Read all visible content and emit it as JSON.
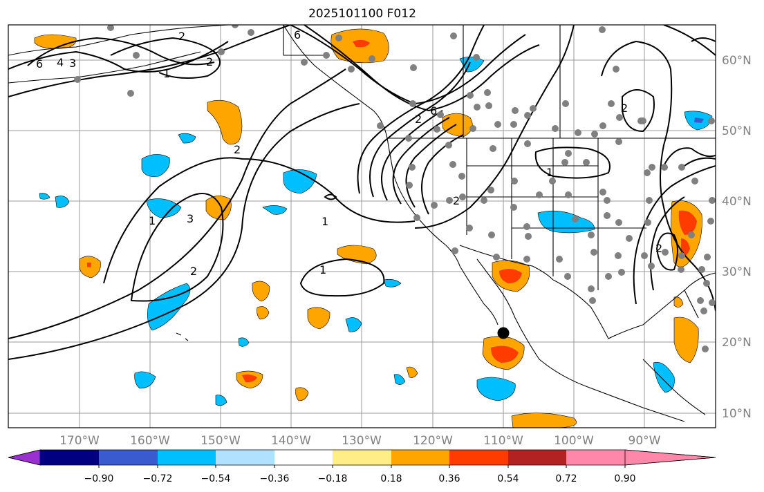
{
  "title": "2025101100 F012",
  "longitude_labels": [
    "170°W",
    "160°W",
    "150°W",
    "140°W",
    "130°W",
    "120°W",
    "110°W",
    "100°W",
    "90°W"
  ],
  "latitude_labels": [
    "60°N",
    "50°N",
    "40°N",
    "30°N",
    "20°N",
    "10°N"
  ],
  "colorbar": {
    "tick_labels": [
      "−0.90",
      "−0.72",
      "−0.54",
      "−0.36",
      "−0.18",
      "0.18",
      "0.36",
      "0.54",
      "0.72",
      "0.90"
    ],
    "colors": [
      "#9b30d0",
      "#000080",
      "#3a5bd0",
      "#00bfff",
      "#b0e2ff",
      "#ffffff",
      "#ffee88",
      "#ffa500",
      "#ff3c00",
      "#b22222",
      "#ff88aa"
    ]
  },
  "contour_labels": [
    "6",
    "6",
    "4",
    "3",
    "2",
    "2",
    "2",
    "2",
    "2",
    "2",
    "1",
    "1",
    "1",
    "1",
    "3",
    "2",
    "6",
    "2",
    "1"
  ],
  "marker_colors": {
    "station": "#808080",
    "center": "#000000",
    "coast": "#000000"
  }
}
